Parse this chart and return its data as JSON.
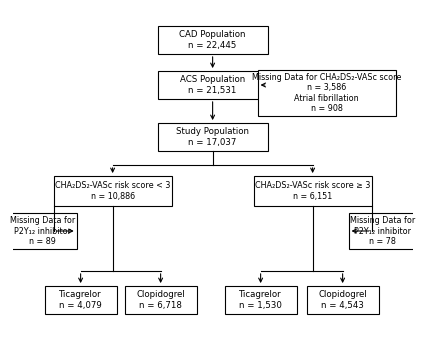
{
  "background_color": "#ffffff",
  "cad_text": "CAD Population\nn = 22,445",
  "acs_text": "ACS Population\nn = 21,531",
  "missing_cha2ds2_text": "Missing Data for CHA₂DS₂-VASc score\nn = 3,586\nAtrial fibrillation\nn = 908",
  "study_text": "Study Population\nn = 17,037",
  "low_risk_text": "CHA₂DS₂-VASc risk score < 3\nn = 10,886",
  "high_risk_text": "CHA₂DS₂-VASc risk score ≥ 3\nn = 6,151",
  "missing_p2y12_left_text": "Missing Data for\nP2Y₁₂ inhibitor\nn = 89",
  "missing_p2y12_right_text": "Missing Data for\nP2Y₁₂ inhibitor\nn = 78",
  "tica_left_text": "Ticagrelor\nn = 4,079",
  "clopi_left_text": "Clopidogrel\nn = 6,718",
  "tica_right_text": "Ticagrelor\nn = 1,530",
  "clopi_right_text": "Clopidogrel\nn = 4,543"
}
